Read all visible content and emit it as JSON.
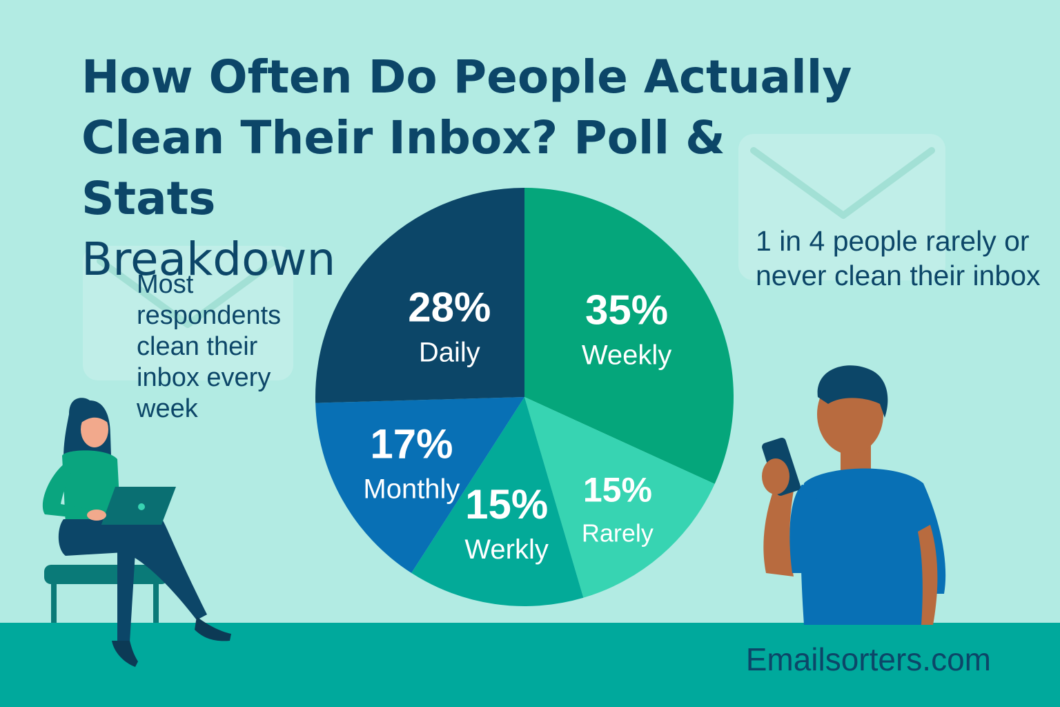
{
  "title_lines": [
    "How Often Do People Actually",
    "Clean Their Inbox? Poll & Stats",
    "Breakdown"
  ],
  "callouts": {
    "left": "Most respondents clean their inbox every week",
    "right": "1 in 4 people rarely or never clean their inbox"
  },
  "brand": "Emailsorters.com",
  "colors": {
    "background": "#b2ebe3",
    "floor": "#00a99c",
    "title": "#0c4668"
  },
  "icons": [
    "envelope-icon",
    "envelope-icon",
    "woman-with-laptop-illustration",
    "man-with-phone-illustration"
  ],
  "chart_data": {
    "type": "pie",
    "title": "",
    "slices": [
      {
        "label": "Weekly",
        "value_label": "35%",
        "value": 35,
        "color": "#05a67b"
      },
      {
        "label": "Rarely",
        "value_label": "15%",
        "value": 15,
        "color": "#37d4b2"
      },
      {
        "label": "Werkly",
        "value_label": "15%",
        "value": 15,
        "color": "#03aa98"
      },
      {
        "label": "Monthly",
        "value_label": "17%",
        "value": 17,
        "color": "#0870b5"
      },
      {
        "label": "Daily",
        "value_label": "28%",
        "value": 28,
        "color": "#0c4668"
      }
    ],
    "start_angle_deg": 0,
    "direction": "clockwise",
    "legend": "none"
  }
}
